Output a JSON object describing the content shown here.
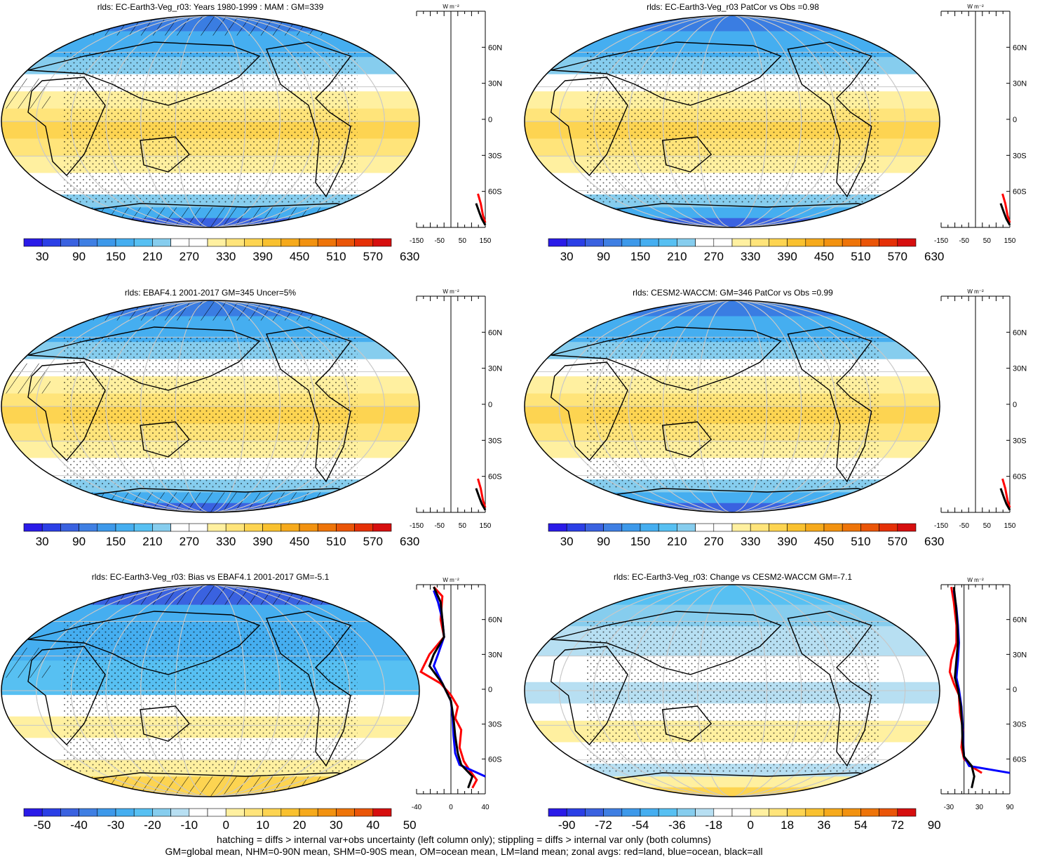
{
  "panels": [
    {
      "title": "rlds: EC-Earth3-Veg_r03: Years 1980-1999 : MAM : GM=339",
      "scale": "abs",
      "zonal": "abs1"
    },
    {
      "title": "rlds: EC-Earth3-Veg_r03 PatCor vs Obs =0.98",
      "scale": "abs",
      "zonal": "abs1"
    },
    {
      "title": "rlds: EBAF4.1 2001-2017 GM=345 Uncer=5%",
      "scale": "abs",
      "zonal": "abs2"
    },
    {
      "title": "rlds: CESM2-WACCM: GM=346 PatCor vs Obs =0.99",
      "scale": "abs",
      "zonal": "abs2"
    },
    {
      "title": "rlds: EC-Earth3-Veg_r03: Bias vs EBAF4.1 2001-2017 GM=-5.1",
      "scale": "bias",
      "zonal": "bias"
    },
    {
      "title": "rlds: EC-Earth3-Veg_r03: Change vs CESM2-WACCM GM=-7.1",
      "scale": "change",
      "zonal": "change"
    }
  ],
  "colorbars": {
    "abs": {
      "labels": [
        "30",
        "90",
        "150",
        "210",
        "270",
        "330",
        "390",
        "450",
        "510",
        "570",
        "630"
      ]
    },
    "bias": {
      "labels": [
        "-50",
        "-40",
        "-30",
        "-20",
        "-10",
        "0",
        "10",
        "20",
        "30",
        "40",
        "50"
      ]
    },
    "change": {
      "labels": [
        "-90",
        "-72",
        "-54",
        "-36",
        "-18",
        "0",
        "18",
        "36",
        "54",
        "72",
        "90"
      ]
    }
  },
  "zonal_axes": {
    "unit": "W m⁻²",
    "lat_labels": [
      "60N",
      "30N",
      "0",
      "30S",
      "60S"
    ],
    "abs_ticks": [
      "-150",
      "-50",
      "50",
      "150"
    ],
    "bias_ticks": [
      "-40",
      "0",
      "40"
    ],
    "change_ticks": [
      "-30",
      "30",
      "90"
    ]
  },
  "legend_colors": {
    "land": "#ff0000",
    "ocean": "#0000ff",
    "all": "#000000"
  },
  "footnote": {
    "line1": "hatching = diffs > internal var+obs uncertainty (left column only); stippling = diffs > internal var only (both columns)",
    "line2": "GM=global mean, NHM=0-90N mean, SHM=0-90S mean, OM=ocean mean, LM=land mean; zonal avgs: red=land, blue=ocean, black=all"
  }
}
